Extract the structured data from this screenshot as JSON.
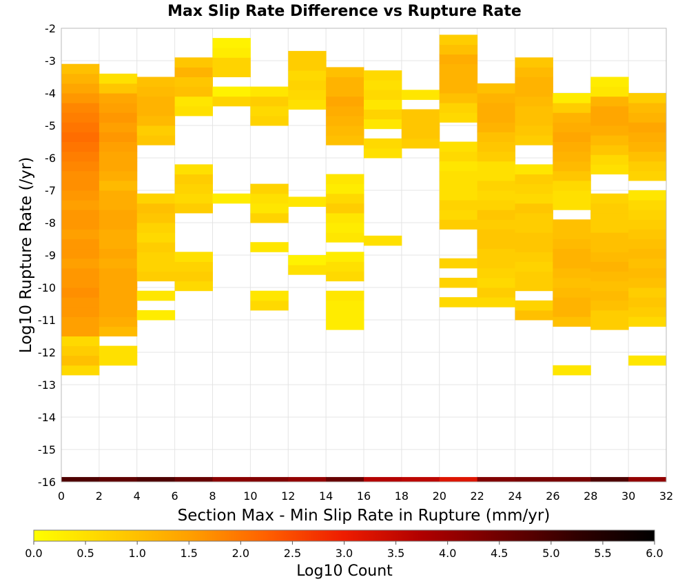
{
  "chart_data": {
    "type": "heatmap",
    "title": "Max Slip Rate Difference vs Rupture Rate",
    "xlabel": "Section Max - Min Slip Rate in Rupture (mm/yr)",
    "ylabel": "Log10 Rupture Rate (/yr)",
    "xlim": [
      0,
      32
    ],
    "ylim": [
      -16,
      -2
    ],
    "x_ticks": [
      0,
      2,
      4,
      6,
      8,
      10,
      12,
      14,
      16,
      18,
      20,
      22,
      24,
      26,
      28,
      30,
      32
    ],
    "y_ticks": [
      -16,
      -15,
      -14,
      -13,
      -12,
      -11,
      -10,
      -9,
      -8,
      -7,
      -6,
      -5,
      -4,
      -3,
      -2
    ],
    "x_bin_width": 2,
    "y_bin_height": 0.3,
    "grid": true,
    "colorbar": {
      "label": "Log10 Count",
      "range": [
        0,
        6
      ],
      "ticks": [
        "0.0",
        "0.5",
        "1.0",
        "1.5",
        "2.0",
        "2.5",
        "3.0",
        "3.5",
        "4.0",
        "4.5",
        "5.0",
        "5.5",
        "6.0"
      ],
      "placement": "bottom",
      "colors": [
        "#ffff00",
        "#ffd000",
        "#ffa000",
        "#ff6000",
        "#ee1c00",
        "#b00000",
        "#700000",
        "#300000",
        "#000000"
      ]
    },
    "columns": [
      {
        "x": 0,
        "y_start": -12.7,
        "values": [
          0.6,
          1.0,
          0.8,
          0.6,
          1.5,
          1.5,
          1.6,
          1.6,
          1.7,
          1.6,
          1.6,
          1.5,
          1.6,
          1.6,
          1.5,
          1.6,
          1.6,
          1.5,
          1.6,
          1.7,
          1.7,
          1.8,
          1.9,
          2.0,
          2.1,
          2.0,
          1.9,
          1.8,
          1.6,
          1.4,
          1.2,
          1.0
        ]
      },
      {
        "x": 2,
        "y_start": -12.4,
        "values": [
          0.5,
          0.5,
          null,
          1.1,
          1.3,
          1.4,
          1.4,
          1.4,
          1.4,
          1.4,
          1.3,
          1.4,
          1.3,
          1.3,
          1.4,
          1.4,
          1.3,
          1.3,
          1.1,
          1.3,
          1.4,
          1.4,
          1.5,
          1.6,
          1.5,
          1.6,
          1.5,
          1.4,
          0.9,
          0.5
        ]
      },
      {
        "x": 4,
        "y_start": -11.0,
        "values": [
          0.3,
          null,
          0.4,
          null,
          0.8,
          0.7,
          0.7,
          0.8,
          0.6,
          0.7,
          0.9,
          1.0,
          0.7,
          null,
          null,
          null,
          null,
          null,
          0.9,
          0.8,
          1.1,
          1.2,
          1.2,
          1.1,
          1.0
        ]
      },
      {
        "x": 6,
        "y_start": -10.1,
        "values": [
          0.6,
          0.8,
          0.7,
          0.5,
          null,
          null,
          null,
          null,
          0.8,
          0.6,
          0.7,
          0.8,
          0.5,
          null,
          null,
          null,
          null,
          null,
          0.5,
          0.4,
          1.0,
          0.9,
          1.2,
          0.9
        ]
      },
      {
        "x": 8,
        "y_start": -7.4,
        "values": [
          0.3,
          null,
          null,
          null,
          null,
          null,
          null,
          null,
          null,
          null,
          0.7,
          0.2,
          null,
          0.7,
          0.7,
          0.3,
          0.2
        ]
      },
      {
        "x": 10,
        "y_start": -10.7,
        "values": [
          0.6,
          0.4,
          null,
          null,
          null,
          null,
          0.4,
          null,
          null,
          0.7,
          0.4,
          0.5,
          0.7,
          null,
          null,
          null,
          null,
          null,
          null,
          0.7,
          0.6,
          0.8,
          0.4
        ]
      },
      {
        "x": 12,
        "y_start": -9.6,
        "values": [
          0.5,
          0.2,
          null,
          null,
          null,
          null,
          null,
          0.4,
          null,
          null,
          null,
          null,
          null,
          null,
          null,
          null,
          null,
          0.5,
          0.6,
          0.7,
          0.6,
          0.8,
          0.8
        ]
      },
      {
        "x": 14,
        "y_start": -11.3,
        "values": [
          0.3,
          0.3,
          0.3,
          0.4,
          null,
          0.6,
          0.5,
          0.3,
          null,
          0.4,
          0.3,
          0.4,
          0.8,
          0.6,
          0.3,
          0.4,
          null,
          null,
          null,
          1.0,
          1.1,
          1.2,
          1.3,
          1.4,
          1.2,
          1.2,
          1.0
        ]
      },
      {
        "x": 16,
        "y_start": -8.7,
        "values": [
          0.5,
          null,
          null,
          null,
          null,
          null,
          null,
          null,
          null,
          0.5,
          0.6,
          null,
          0.4,
          0.7,
          0.4,
          0.6,
          0.5,
          0.6
        ]
      },
      {
        "x": 18,
        "y_start": -5.7,
        "values": [
          0.8,
          0.9,
          0.9,
          0.9,
          null,
          0.4
        ]
      },
      {
        "x": 20,
        "y_start": -10.6,
        "values": [
          0.6,
          null,
          0.7,
          null,
          0.7,
          null,
          null,
          null,
          0.8,
          0.6,
          0.7,
          0.5,
          0.5,
          0.5,
          0.4,
          0.6,
          0.5,
          null,
          null,
          0.6,
          0.7,
          1.0,
          1.2,
          1.2,
          1.2,
          1.3,
          1.0,
          0.8
        ]
      },
      {
        "x": 22,
        "y_start": -10.6,
        "values": [
          0.6,
          0.8,
          0.6,
          0.7,
          0.8,
          0.8,
          0.9,
          0.9,
          0.8,
          0.9,
          0.7,
          0.6,
          0.7,
          0.5,
          0.5,
          0.8,
          0.9,
          1.0,
          1.2,
          1.3,
          1.3,
          1.2,
          1.0
        ]
      },
      {
        "x": 24,
        "y_start": -11.0,
        "values": [
          1.0,
          0.7,
          null,
          0.8,
          0.8,
          0.7,
          0.8,
          0.9,
          0.9,
          0.8,
          0.8,
          0.9,
          0.6,
          0.7,
          0.8,
          0.4,
          null,
          null,
          0.8,
          0.9,
          1.0,
          1.0,
          1.1,
          1.2,
          1.2,
          1.1,
          0.9
        ]
      },
      {
        "x": 26,
        "y_start": -12.7,
        "values": [
          0.4,
          null,
          null,
          null,
          null,
          1.0,
          1.2,
          1.2,
          1.1,
          1.0,
          1.1,
          1.2,
          1.2,
          1.1,
          1.0,
          1.0,
          null,
          0.5,
          0.5,
          0.6,
          0.9,
          1.1,
          1.2,
          1.3,
          1.4,
          1.3,
          1.2,
          0.8,
          0.3
        ]
      },
      {
        "x": 28,
        "y_start": -11.3,
        "values": [
          0.8,
          0.8,
          1.0,
          1.1,
          1.0,
          1.1,
          1.2,
          1.1,
          1.0,
          1.0,
          0.8,
          0.8,
          0.8,
          0.7,
          null,
          null,
          0.5,
          0.6,
          0.9,
          1.1,
          1.3,
          1.4,
          1.4,
          1.2,
          0.4,
          0.3
        ]
      },
      {
        "x": 30,
        "y_start": -12.4,
        "values": [
          0.4,
          null,
          null,
          null,
          0.6,
          0.8,
          0.9,
          0.8,
          1.0,
          1.1,
          1.0,
          1.1,
          1.0,
          0.9,
          0.8,
          0.7,
          0.6,
          0.4,
          null,
          0.7,
          0.8,
          1.0,
          1.2,
          1.3,
          1.4,
          1.2,
          1.1,
          0.8
        ]
      }
    ],
    "bottom_row": {
      "y": -16,
      "height": 0.15,
      "values": [
        4.9,
        4.7,
        4.9,
        4.6,
        4.2,
        4.3,
        4.1,
        4.6,
        3.7,
        3.6,
        3.2,
        4.3,
        4.4,
        4.4,
        4.9,
        4.1
      ]
    }
  }
}
